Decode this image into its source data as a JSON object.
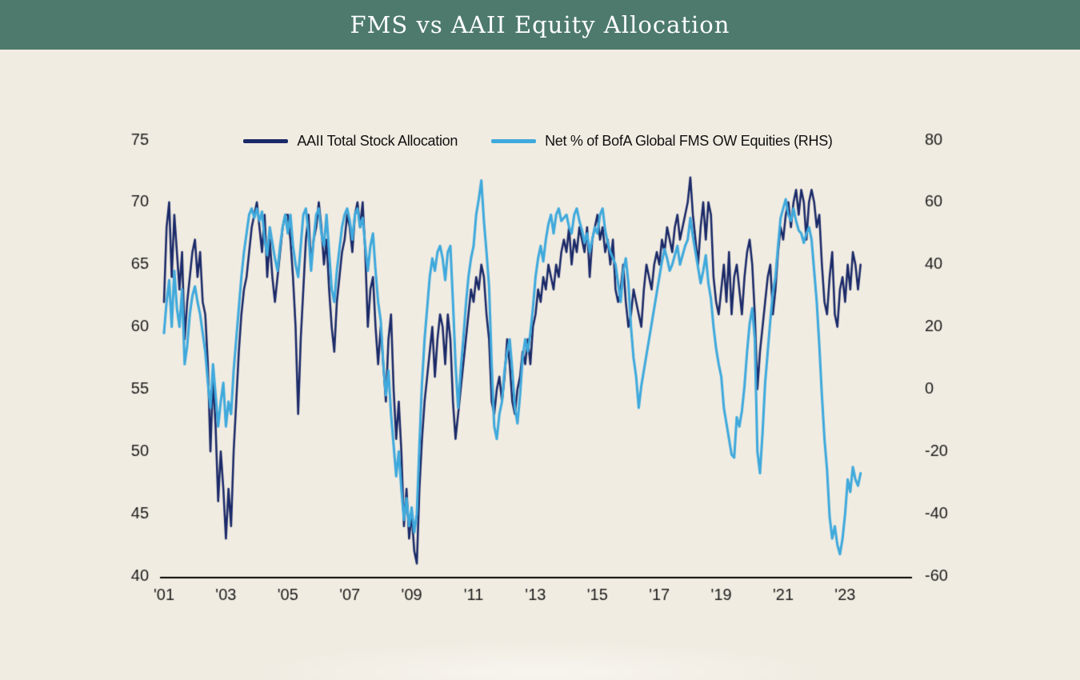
{
  "header": {
    "title": "FMS vs AAII Equity Allocation"
  },
  "colors": {
    "header_bg": "#4d7a6d",
    "background": "#f1ece2",
    "axis_text": "#1a1a1a",
    "axis_line": "#000000",
    "navy": "#1b2a68",
    "light_blue": "#3fa9dc"
  },
  "chart_data": {
    "type": "line",
    "title": "FMS vs AAII Equity Allocation",
    "grid": false,
    "legend_position": "top",
    "x_start_year": 2001,
    "points_per_year": 12,
    "x_tick_labels": [
      "'01",
      "'03",
      "'05",
      "'07",
      "'09",
      "'11",
      "'13",
      "'15",
      "'17",
      "'19",
      "'21",
      "'23"
    ],
    "left_axis": {
      "ticks": [
        75,
        70,
        65,
        60,
        55,
        50,
        45,
        40
      ],
      "range": [
        40,
        75
      ]
    },
    "right_axis": {
      "ticks": [
        80,
        60,
        40,
        20,
        0,
        -20,
        -40,
        -60
      ],
      "range": [
        -60,
        80
      ]
    },
    "series": [
      {
        "name": "AAII Total Stock Allocation",
        "axis": "left",
        "color": "#1b2a68",
        "values": [
          62,
          68,
          70,
          64,
          69,
          66,
          63,
          66,
          59,
          62,
          64,
          66,
          67,
          64,
          66,
          62,
          61,
          57,
          50,
          56,
          52,
          46,
          50,
          47,
          43,
          47,
          44,
          50,
          54,
          58,
          61,
          63,
          64,
          66,
          68,
          69,
          70,
          68,
          66,
          69,
          64,
          67,
          64,
          62,
          64,
          66,
          68,
          69,
          69,
          67,
          64,
          60,
          53,
          59,
          63,
          67,
          69,
          65,
          67,
          68,
          70,
          68,
          65,
          67,
          63,
          60,
          58,
          62,
          64,
          66,
          67,
          69,
          68,
          66,
          69,
          70,
          68,
          70,
          66,
          60,
          63,
          64,
          60,
          57,
          60,
          57,
          54,
          59,
          61,
          55,
          51,
          54,
          50,
          44,
          47,
          43,
          45,
          42,
          41,
          47,
          51,
          54,
          56,
          58,
          60,
          56,
          59,
          61,
          60,
          57,
          61,
          59,
          54,
          51,
          53,
          55,
          57,
          59,
          61,
          63,
          62,
          64,
          63,
          65,
          64,
          61,
          59,
          54,
          53,
          55,
          56,
          54,
          56,
          59,
          57,
          54,
          53,
          55,
          56,
          58,
          57,
          59,
          57,
          60,
          61,
          63,
          62,
          64,
          63,
          65,
          64,
          63,
          65,
          64,
          66,
          67,
          66,
          68,
          65,
          67,
          66,
          68,
          67,
          66,
          68,
          64,
          67,
          68,
          69,
          67,
          68,
          66,
          67,
          65,
          67,
          63,
          62,
          63,
          65,
          62,
          60,
          61,
          63,
          62,
          61,
          60,
          63,
          65,
          64,
          63,
          65,
          66,
          65,
          67,
          66,
          68,
          67,
          66,
          68,
          69,
          67,
          68,
          69,
          70,
          72,
          69,
          67,
          65,
          68,
          70,
          67,
          70,
          69,
          64,
          62,
          61,
          63,
          65,
          62,
          66,
          61,
          64,
          65,
          63,
          61,
          64,
          66,
          67,
          65,
          61,
          55,
          58,
          60,
          62,
          64,
          65,
          61,
          63,
          66,
          68,
          67,
          69,
          70,
          68,
          70,
          71,
          69,
          71,
          70,
          67,
          70,
          71,
          70,
          68,
          69,
          65,
          62,
          61,
          64,
          66,
          61,
          60,
          63,
          64,
          62,
          65,
          63,
          66,
          65,
          63,
          65
        ]
      },
      {
        "name": "Net % of BofA Global FMS OW Equities (RHS)",
        "axis": "right",
        "color": "#3fa9dc",
        "values": [
          18,
          28,
          35,
          20,
          38,
          26,
          20,
          32,
          8,
          14,
          24,
          30,
          33,
          28,
          24,
          18,
          12,
          2,
          -6,
          8,
          -2,
          -12,
          -4,
          2,
          -12,
          -4,
          -8,
          6,
          16,
          26,
          36,
          44,
          50,
          56,
          58,
          55,
          58,
          54,
          57,
          48,
          43,
          52,
          47,
          42,
          38,
          46,
          52,
          56,
          50,
          56,
          46,
          40,
          36,
          46,
          56,
          58,
          50,
          38,
          48,
          56,
          58,
          50,
          46,
          56,
          44,
          32,
          28,
          38,
          45,
          52,
          56,
          58,
          54,
          48,
          56,
          58,
          52,
          55,
          46,
          38,
          46,
          50,
          38,
          28,
          22,
          8,
          -2,
          6,
          -8,
          -18,
          -28,
          -20,
          -32,
          -42,
          -35,
          -44,
          -38,
          -46,
          -40,
          -18,
          2,
          16,
          26,
          36,
          42,
          38,
          44,
          46,
          42,
          35,
          44,
          46,
          28,
          8,
          -6,
          6,
          16,
          27,
          36,
          42,
          46,
          56,
          61,
          67,
          54,
          44,
          33,
          8,
          -12,
          -16,
          -8,
          -4,
          6,
          12,
          16,
          6,
          -6,
          -11,
          -2,
          10,
          16,
          12,
          18,
          26,
          36,
          42,
          46,
          41,
          48,
          53,
          56,
          50,
          56,
          58,
          54,
          55,
          56,
          52,
          50,
          56,
          58,
          54,
          51,
          47,
          50,
          44,
          48,
          52,
          50,
          56,
          58,
          51,
          47,
          44,
          42,
          40,
          34,
          28,
          38,
          42,
          34,
          20,
          10,
          4,
          -6,
          1,
          6,
          11,
          16,
          21,
          26,
          31,
          36,
          41,
          45,
          42,
          38,
          40,
          43,
          46,
          40,
          43,
          46,
          48,
          55,
          49,
          44,
          39,
          34,
          38,
          43,
          34,
          29,
          20,
          13,
          8,
          4,
          -6,
          -11,
          -16,
          -21,
          -22,
          -9,
          -12,
          -7,
          1,
          12,
          21,
          26,
          16,
          -20,
          -27,
          -14,
          2,
          12,
          22,
          31,
          36,
          46,
          55,
          58,
          61,
          56,
          54,
          58,
          54,
          51,
          50,
          47,
          50,
          52,
          48,
          38,
          28,
          14,
          -2,
          -16,
          -26,
          -41,
          -48,
          -44,
          -50,
          -53,
          -48,
          -40,
          -29,
          -33,
          -25,
          -29,
          -31,
          -27
        ]
      }
    ]
  }
}
